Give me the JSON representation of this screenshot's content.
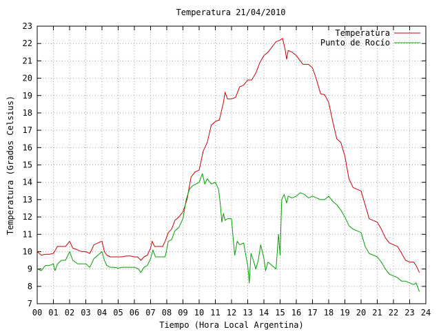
{
  "chart_data": {
    "type": "line",
    "title": "Temperatura 21/04/2010",
    "xlabel": "Tiempo (Hora Local Argentina)",
    "ylabel": "Temperatura (Grados Celsius)",
    "xlim": [
      0,
      24
    ],
    "ylim": [
      7,
      23
    ],
    "x_ticks": [
      0,
      1,
      2,
      3,
      4,
      5,
      6,
      7,
      8,
      9,
      10,
      11,
      12,
      13,
      14,
      15,
      16,
      17,
      18,
      19,
      20,
      21,
      22,
      23,
      24
    ],
    "x_tick_labels": [
      "00",
      "01",
      "02",
      "03",
      "04",
      "05",
      "06",
      "07",
      "08",
      "09",
      "10",
      "11",
      "12",
      "13",
      "14",
      "15",
      "16",
      "17",
      "18",
      "19",
      "20",
      "21",
      "22",
      "23",
      "24"
    ],
    "y_ticks": [
      7,
      8,
      9,
      10,
      11,
      12,
      13,
      14,
      15,
      16,
      17,
      18,
      19,
      20,
      21,
      22,
      23
    ],
    "grid": true,
    "legend_position": "top-right",
    "series": [
      {
        "name": "Temperatura",
        "color": "#cc0000",
        "points": [
          [
            0,
            10.0
          ],
          [
            0.25,
            9.8
          ],
          [
            0.5,
            9.85
          ],
          [
            0.75,
            9.85
          ],
          [
            1.0,
            9.9
          ],
          [
            1.25,
            10.3
          ],
          [
            1.5,
            10.3
          ],
          [
            1.75,
            10.3
          ],
          [
            2.0,
            10.6
          ],
          [
            2.2,
            10.2
          ],
          [
            2.5,
            10.1
          ],
          [
            2.75,
            10.0
          ],
          [
            3.0,
            10.0
          ],
          [
            3.25,
            9.9
          ],
          [
            3.5,
            10.4
          ],
          [
            3.75,
            10.5
          ],
          [
            4.0,
            10.6
          ],
          [
            4.15,
            10.0
          ],
          [
            4.3,
            9.8
          ],
          [
            4.5,
            9.7
          ],
          [
            4.75,
            9.7
          ],
          [
            5.0,
            9.7
          ],
          [
            5.25,
            9.7
          ],
          [
            5.5,
            9.75
          ],
          [
            5.75,
            9.75
          ],
          [
            6.0,
            9.7
          ],
          [
            6.2,
            9.7
          ],
          [
            6.4,
            9.5
          ],
          [
            6.6,
            9.7
          ],
          [
            6.8,
            9.8
          ],
          [
            7.0,
            10.2
          ],
          [
            7.1,
            10.6
          ],
          [
            7.25,
            10.3
          ],
          [
            7.5,
            10.3
          ],
          [
            7.75,
            10.3
          ],
          [
            7.9,
            10.6
          ],
          [
            8.1,
            11.1
          ],
          [
            8.3,
            11.3
          ],
          [
            8.5,
            11.8
          ],
          [
            8.75,
            12.0
          ],
          [
            9.0,
            12.3
          ],
          [
            9.25,
            13.0
          ],
          [
            9.5,
            14.3
          ],
          [
            9.75,
            14.6
          ],
          [
            10.0,
            14.7
          ],
          [
            10.25,
            15.8
          ],
          [
            10.5,
            16.3
          ],
          [
            10.75,
            17.3
          ],
          [
            11.0,
            17.5
          ],
          [
            11.25,
            17.6
          ],
          [
            11.5,
            18.6
          ],
          [
            11.6,
            19.2
          ],
          [
            11.75,
            18.8
          ],
          [
            12.0,
            18.8
          ],
          [
            12.25,
            18.9
          ],
          [
            12.5,
            19.5
          ],
          [
            12.75,
            19.6
          ],
          [
            13.0,
            19.9
          ],
          [
            13.25,
            19.9
          ],
          [
            13.5,
            20.3
          ],
          [
            13.75,
            20.9
          ],
          [
            14.0,
            21.3
          ],
          [
            14.25,
            21.5
          ],
          [
            14.5,
            21.8
          ],
          [
            14.75,
            22.1
          ],
          [
            15.0,
            22.2
          ],
          [
            15.15,
            22.3
          ],
          [
            15.3,
            21.7
          ],
          [
            15.4,
            21.1
          ],
          [
            15.5,
            21.6
          ],
          [
            15.75,
            21.5
          ],
          [
            16.0,
            21.3
          ],
          [
            16.25,
            21.0
          ],
          [
            16.4,
            20.8
          ],
          [
            16.75,
            20.8
          ],
          [
            17.0,
            20.6
          ],
          [
            17.25,
            19.9
          ],
          [
            17.5,
            19.1
          ],
          [
            17.75,
            19.05
          ],
          [
            18.0,
            18.6
          ],
          [
            18.25,
            17.5
          ],
          [
            18.5,
            16.5
          ],
          [
            18.75,
            16.3
          ],
          [
            19.0,
            15.5
          ],
          [
            19.25,
            14.2
          ],
          [
            19.5,
            13.7
          ],
          [
            19.75,
            13.6
          ],
          [
            20.0,
            13.5
          ],
          [
            20.25,
            12.7
          ],
          [
            20.5,
            11.9
          ],
          [
            20.75,
            11.8
          ],
          [
            21.0,
            11.7
          ],
          [
            21.25,
            11.3
          ],
          [
            21.5,
            10.8
          ],
          [
            21.75,
            10.5
          ],
          [
            22.0,
            10.4
          ],
          [
            22.25,
            10.3
          ],
          [
            22.5,
            9.9
          ],
          [
            22.75,
            9.5
          ],
          [
            23.0,
            9.4
          ],
          [
            23.25,
            9.4
          ],
          [
            23.4,
            9.2
          ],
          [
            23.6,
            8.8
          ]
        ]
      },
      {
        "name": "Punto de Rocío",
        "color": "#00a000",
        "points": [
          [
            0,
            9.0
          ],
          [
            0.25,
            8.9
          ],
          [
            0.5,
            9.2
          ],
          [
            0.75,
            9.2
          ],
          [
            1.0,
            9.3
          ],
          [
            1.1,
            8.9
          ],
          [
            1.25,
            9.3
          ],
          [
            1.5,
            9.5
          ],
          [
            1.75,
            9.5
          ],
          [
            2.0,
            10.0
          ],
          [
            2.2,
            9.5
          ],
          [
            2.5,
            9.3
          ],
          [
            2.75,
            9.3
          ],
          [
            3.0,
            9.3
          ],
          [
            3.25,
            9.1
          ],
          [
            3.5,
            9.6
          ],
          [
            3.75,
            9.8
          ],
          [
            4.0,
            10.0
          ],
          [
            4.15,
            9.5
          ],
          [
            4.3,
            9.2
          ],
          [
            4.5,
            9.1
          ],
          [
            4.75,
            9.1
          ],
          [
            5.0,
            9.05
          ],
          [
            5.25,
            9.1
          ],
          [
            5.5,
            9.1
          ],
          [
            5.75,
            9.1
          ],
          [
            6.0,
            9.1
          ],
          [
            6.25,
            9.0
          ],
          [
            6.4,
            8.8
          ],
          [
            6.6,
            9.1
          ],
          [
            6.8,
            9.2
          ],
          [
            7.0,
            9.6
          ],
          [
            7.15,
            10.1
          ],
          [
            7.3,
            9.7
          ],
          [
            7.5,
            9.7
          ],
          [
            7.75,
            9.7
          ],
          [
            7.9,
            9.7
          ],
          [
            8.1,
            10.6
          ],
          [
            8.3,
            10.7
          ],
          [
            8.5,
            11.2
          ],
          [
            8.75,
            11.4
          ],
          [
            9.0,
            11.9
          ],
          [
            9.2,
            13.0
          ],
          [
            9.4,
            13.6
          ],
          [
            9.6,
            13.8
          ],
          [
            9.8,
            13.9
          ],
          [
            10.0,
            14.0
          ],
          [
            10.2,
            14.5
          ],
          [
            10.35,
            13.9
          ],
          [
            10.5,
            14.2
          ],
          [
            10.75,
            13.9
          ],
          [
            11.0,
            14.0
          ],
          [
            11.2,
            13.6
          ],
          [
            11.3,
            12.8
          ],
          [
            11.4,
            11.7
          ],
          [
            11.5,
            12.2
          ],
          [
            11.6,
            11.8
          ],
          [
            11.75,
            11.9
          ],
          [
            12.0,
            11.9
          ],
          [
            12.1,
            10.8
          ],
          [
            12.2,
            9.8
          ],
          [
            12.35,
            10.6
          ],
          [
            12.5,
            10.4
          ],
          [
            12.75,
            10.5
          ],
          [
            12.9,
            9.7
          ],
          [
            13.0,
            9.2
          ],
          [
            13.1,
            8.2
          ],
          [
            13.2,
            9.9
          ],
          [
            13.35,
            9.5
          ],
          [
            13.5,
            9.0
          ],
          [
            13.65,
            9.5
          ],
          [
            13.8,
            10.4
          ],
          [
            14.0,
            9.6
          ],
          [
            14.1,
            8.9
          ],
          [
            14.25,
            9.4
          ],
          [
            14.5,
            9.2
          ],
          [
            14.75,
            9.0
          ],
          [
            14.9,
            11.0
          ],
          [
            15.0,
            9.8
          ],
          [
            15.1,
            13.0
          ],
          [
            15.25,
            13.3
          ],
          [
            15.4,
            12.8
          ],
          [
            15.5,
            13.2
          ],
          [
            15.75,
            13.1
          ],
          [
            16.0,
            13.2
          ],
          [
            16.25,
            13.4
          ],
          [
            16.5,
            13.3
          ],
          [
            16.75,
            13.1
          ],
          [
            17.0,
            13.2
          ],
          [
            17.25,
            13.1
          ],
          [
            17.5,
            13.0
          ],
          [
            17.75,
            13.0
          ],
          [
            18.0,
            13.2
          ],
          [
            18.25,
            12.9
          ],
          [
            18.5,
            12.7
          ],
          [
            18.75,
            12.4
          ],
          [
            19.0,
            12.0
          ],
          [
            19.25,
            11.5
          ],
          [
            19.5,
            11.3
          ],
          [
            19.75,
            11.2
          ],
          [
            20.0,
            11.1
          ],
          [
            20.25,
            10.3
          ],
          [
            20.5,
            9.9
          ],
          [
            20.75,
            9.8
          ],
          [
            21.0,
            9.7
          ],
          [
            21.25,
            9.4
          ],
          [
            21.5,
            9.0
          ],
          [
            21.75,
            8.7
          ],
          [
            22.0,
            8.6
          ],
          [
            22.25,
            8.5
          ],
          [
            22.5,
            8.3
          ],
          [
            22.75,
            8.3
          ],
          [
            23.0,
            8.2
          ],
          [
            23.25,
            8.1
          ],
          [
            23.4,
            8.2
          ],
          [
            23.6,
            7.7
          ]
        ]
      }
    ]
  }
}
